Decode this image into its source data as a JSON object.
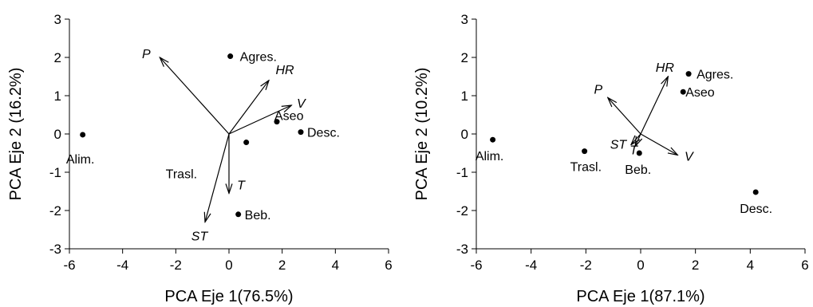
{
  "chart_data": [
    {
      "type": "scatter",
      "title": "",
      "xlabel": "PCA Eje 1(76.5%)",
      "ylabel": "PCA Eje 2 (16.2%)",
      "xlim": [
        -6,
        6
      ],
      "ylim": [
        -3,
        3
      ],
      "xticks": [
        -6,
        -4,
        -2,
        0,
        2,
        4,
        6
      ],
      "yticks": [
        -3,
        -2,
        -1,
        0,
        1,
        2,
        3
      ],
      "grid": false,
      "points": [
        {
          "label": "Alim.",
          "x": -5.5,
          "y": -0.02
        },
        {
          "label": "Agres.",
          "x": 0.05,
          "y": 2.03
        },
        {
          "label": "Aseo",
          "x": 1.8,
          "y": 0.32
        },
        {
          "label": "Desc.",
          "x": 2.7,
          "y": 0.05
        },
        {
          "label": "Beb.",
          "x": 0.35,
          "y": -2.1
        },
        {
          "label": "Trasl.",
          "x": 0.65,
          "y": -0.22
        }
      ],
      "vectors": [
        {
          "label": "P",
          "x": -2.6,
          "y": 2.0
        },
        {
          "label": "HR",
          "x": 1.5,
          "y": 1.4
        },
        {
          "label": "V",
          "x": 2.35,
          "y": 0.75
        },
        {
          "label": "T",
          "x": 0.0,
          "y": -1.55
        },
        {
          "label": "ST",
          "x": -0.9,
          "y": -2.3
        }
      ]
    },
    {
      "type": "scatter",
      "title": "",
      "xlabel": "PCA Eje 1(87.1%)",
      "ylabel": "PCA Eje 2 (10.2%)",
      "xlim": [
        -6,
        6
      ],
      "ylim": [
        -3,
        3
      ],
      "xticks": [
        -6,
        -4,
        -2,
        0,
        2,
        4,
        6
      ],
      "yticks": [
        -3,
        -2,
        -1,
        0,
        1,
        2,
        3
      ],
      "grid": false,
      "points": [
        {
          "label": "Alim.",
          "x": -5.4,
          "y": -0.15
        },
        {
          "label": "Agres.",
          "x": 1.75,
          "y": 1.57
        },
        {
          "label": "Aseo",
          "x": 1.55,
          "y": 1.1
        },
        {
          "label": "Trasl.",
          "x": -2.05,
          "y": -0.45
        },
        {
          "label": "Beb.",
          "x": -0.05,
          "y": -0.5
        },
        {
          "label": "Desc.",
          "x": 4.2,
          "y": -1.52
        }
      ],
      "vectors": [
        {
          "label": "HR",
          "x": 1.0,
          "y": 1.5
        },
        {
          "label": "P",
          "x": -1.2,
          "y": 0.95
        },
        {
          "label": "V",
          "x": 1.35,
          "y": -0.55
        },
        {
          "label": "ST",
          "x": -0.35,
          "y": -0.28
        },
        {
          "label": "T",
          "x": -0.2,
          "y": -0.32
        }
      ]
    }
  ]
}
